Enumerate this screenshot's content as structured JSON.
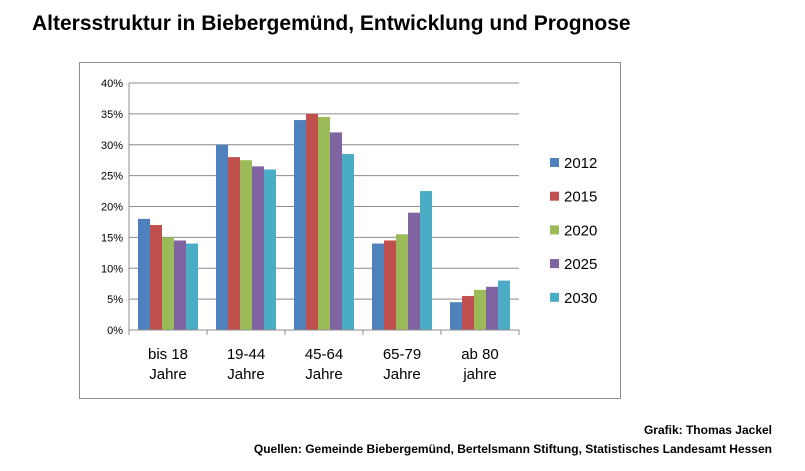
{
  "title": "Altersstruktur in Biebergemünd, Entwicklung und Prognose",
  "credits": {
    "author": "Grafik: Thomas Jackel",
    "sources": "Quellen: Gemeinde Biebergemünd, Bertelsmann Stiftung, Statistisches Landesamt Hessen"
  },
  "chart_data": {
    "type": "bar",
    "categories": [
      [
        "bis 18",
        "Jahre"
      ],
      [
        "19-44",
        "Jahre"
      ],
      [
        "45-64",
        "Jahre"
      ],
      [
        "65-79",
        "Jahre"
      ],
      [
        "ab 80",
        "jahre"
      ]
    ],
    "series": [
      {
        "name": "2012",
        "color": "#4f81bd",
        "values": [
          18,
          30,
          34,
          14,
          4.5
        ]
      },
      {
        "name": "2015",
        "color": "#c0504d",
        "values": [
          17,
          28,
          35,
          14.5,
          5.5
        ]
      },
      {
        "name": "2020",
        "color": "#9bbb59",
        "values": [
          15,
          27.5,
          34.5,
          15.5,
          6.5
        ]
      },
      {
        "name": "2025",
        "color": "#8064a2",
        "values": [
          14.5,
          26.5,
          32,
          19,
          7
        ]
      },
      {
        "name": "2030",
        "color": "#4bacc6",
        "values": [
          14,
          26,
          28.5,
          22.5,
          8
        ]
      }
    ],
    "y_ticks": [
      "0%",
      "5%",
      "10%",
      "15%",
      "20%",
      "25%",
      "30%",
      "35%",
      "40%"
    ],
    "ylim": [
      0,
      40
    ],
    "grid": true,
    "legend_position": "right",
    "xlabel": "",
    "ylabel": ""
  }
}
